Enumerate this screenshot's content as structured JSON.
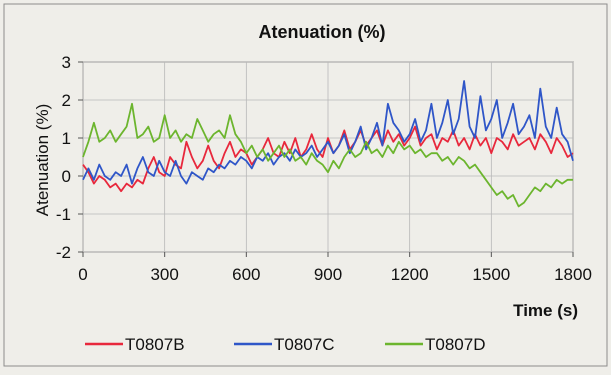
{
  "chart_data": {
    "type": "line",
    "title": "Atenuation (%)",
    "xlabel": "Time (s)",
    "ylabel": "Atenuation (%)",
    "xlim": [
      0,
      1800
    ],
    "ylim": [
      -2,
      3
    ],
    "xticks": [
      0,
      300,
      600,
      900,
      1200,
      1500,
      1800
    ],
    "yticks": [
      -2,
      -1,
      0,
      1,
      2,
      3
    ],
    "grid": true,
    "legend_position": "bottom",
    "series": [
      {
        "name": "T0807B",
        "color": "#e8283c",
        "x": [
          0,
          20,
          40,
          60,
          80,
          100,
          120,
          140,
          160,
          180,
          200,
          220,
          240,
          260,
          280,
          300,
          320,
          340,
          360,
          380,
          400,
          420,
          440,
          460,
          480,
          500,
          520,
          540,
          560,
          580,
          600,
          620,
          640,
          660,
          680,
          700,
          720,
          740,
          760,
          780,
          800,
          820,
          840,
          860,
          880,
          900,
          920,
          940,
          960,
          980,
          1000,
          1020,
          1040,
          1060,
          1080,
          1100,
          1120,
          1140,
          1160,
          1180,
          1200,
          1220,
          1240,
          1260,
          1280,
          1300,
          1320,
          1340,
          1360,
          1380,
          1400,
          1420,
          1440,
          1460,
          1480,
          1500,
          1520,
          1540,
          1560,
          1580,
          1600,
          1620,
          1640,
          1660,
          1680,
          1700,
          1720,
          1740,
          1760,
          1780,
          1800
        ],
        "values": [
          0.3,
          0.1,
          -0.2,
          0.0,
          -0.1,
          -0.3,
          -0.2,
          -0.4,
          -0.2,
          -0.3,
          -0.1,
          -0.2,
          0.2,
          0.5,
          0.1,
          0.0,
          0.5,
          0.3,
          0.2,
          0.9,
          0.5,
          0.2,
          0.4,
          0.8,
          0.4,
          0.2,
          0.6,
          0.9,
          0.5,
          0.7,
          0.6,
          0.3,
          0.5,
          0.7,
          1.0,
          0.6,
          0.5,
          0.9,
          0.6,
          1.0,
          0.5,
          0.7,
          1.1,
          0.7,
          0.5,
          1.0,
          0.6,
          0.8,
          1.2,
          0.7,
          0.9,
          1.2,
          0.8,
          1.0,
          1.2,
          0.8,
          1.2,
          0.9,
          1.1,
          0.8,
          1.0,
          1.3,
          0.8,
          1.0,
          1.1,
          0.7,
          1.0,
          0.9,
          1.2,
          0.8,
          1.0,
          0.7,
          1.1,
          0.8,
          1.0,
          0.6,
          1.0,
          0.9,
          0.7,
          1.1,
          0.8,
          0.9,
          1.0,
          0.7,
          1.1,
          0.9,
          0.6,
          1.0,
          0.8,
          0.5,
          0.6
        ]
      },
      {
        "name": "T0807C",
        "color": "#2f56c8",
        "x": [
          0,
          20,
          40,
          60,
          80,
          100,
          120,
          140,
          160,
          180,
          200,
          220,
          240,
          260,
          280,
          300,
          320,
          340,
          360,
          380,
          400,
          420,
          440,
          460,
          480,
          500,
          520,
          540,
          560,
          580,
          600,
          620,
          640,
          660,
          680,
          700,
          720,
          740,
          760,
          780,
          800,
          820,
          840,
          860,
          880,
          900,
          920,
          940,
          960,
          980,
          1000,
          1020,
          1040,
          1060,
          1080,
          1100,
          1120,
          1140,
          1160,
          1180,
          1200,
          1220,
          1240,
          1260,
          1280,
          1300,
          1320,
          1340,
          1360,
          1380,
          1400,
          1420,
          1440,
          1460,
          1480,
          1500,
          1520,
          1540,
          1560,
          1580,
          1600,
          1620,
          1640,
          1660,
          1680,
          1700,
          1720,
          1740,
          1760,
          1780,
          1800
        ],
        "values": [
          -0.1,
          0.2,
          -0.1,
          0.3,
          0.0,
          -0.1,
          0.1,
          0.0,
          0.3,
          -0.2,
          0.2,
          0.5,
          0.1,
          0.0,
          0.4,
          0.1,
          0.0,
          0.4,
          0.0,
          -0.2,
          0.1,
          0.0,
          -0.1,
          0.2,
          0.1,
          0.3,
          0.2,
          0.4,
          0.3,
          0.5,
          0.4,
          0.2,
          0.5,
          0.4,
          0.6,
          0.3,
          0.5,
          0.6,
          0.4,
          0.7,
          0.5,
          0.6,
          0.8,
          0.5,
          0.7,
          0.9,
          0.6,
          0.8,
          1.1,
          0.6,
          0.9,
          1.3,
          0.7,
          1.0,
          1.4,
          0.8,
          1.9,
          1.4,
          1.2,
          0.9,
          1.1,
          1.5,
          0.9,
          1.2,
          1.9,
          1.0,
          1.4,
          2.0,
          1.1,
          1.5,
          2.5,
          1.3,
          1.0,
          2.1,
          1.2,
          1.5,
          2.0,
          1.0,
          1.4,
          1.9,
          1.1,
          1.3,
          1.6,
          1.0,
          2.3,
          1.3,
          1.0,
          1.8,
          1.1,
          0.9,
          0.4
        ]
      },
      {
        "name": "T0807D",
        "color": "#6cb52e",
        "x": [
          0,
          20,
          40,
          60,
          80,
          100,
          120,
          140,
          160,
          180,
          200,
          220,
          240,
          260,
          280,
          300,
          320,
          340,
          360,
          380,
          400,
          420,
          440,
          460,
          480,
          500,
          520,
          540,
          560,
          580,
          600,
          620,
          640,
          660,
          680,
          700,
          720,
          740,
          760,
          780,
          800,
          820,
          840,
          860,
          880,
          900,
          920,
          940,
          960,
          980,
          1000,
          1020,
          1040,
          1060,
          1080,
          1100,
          1120,
          1140,
          1160,
          1180,
          1200,
          1220,
          1240,
          1260,
          1280,
          1300,
          1320,
          1340,
          1360,
          1380,
          1400,
          1420,
          1440,
          1460,
          1480,
          1500,
          1520,
          1540,
          1560,
          1580,
          1600,
          1620,
          1640,
          1660,
          1680,
          1700,
          1720,
          1740,
          1760,
          1780,
          1800
        ],
        "values": [
          0.5,
          0.9,
          1.4,
          0.9,
          1.0,
          1.2,
          0.9,
          1.1,
          1.3,
          1.9,
          1.0,
          1.1,
          1.3,
          0.9,
          1.0,
          1.6,
          1.0,
          1.2,
          0.9,
          1.1,
          1.0,
          1.5,
          1.2,
          0.9,
          1.1,
          1.2,
          1.0,
          1.6,
          1.1,
          0.9,
          0.6,
          0.8,
          0.5,
          0.7,
          0.4,
          0.6,
          0.8,
          0.5,
          0.7,
          0.4,
          0.5,
          0.3,
          0.6,
          0.4,
          0.3,
          0.1,
          0.4,
          0.2,
          0.5,
          0.7,
          0.5,
          0.6,
          0.9,
          0.6,
          0.7,
          0.5,
          0.8,
          0.6,
          0.9,
          0.7,
          0.8,
          0.6,
          0.7,
          0.5,
          0.6,
          0.6,
          0.4,
          0.5,
          0.3,
          0.5,
          0.4,
          0.2,
          0.3,
          0.1,
          -0.1,
          -0.3,
          -0.5,
          -0.4,
          -0.6,
          -0.5,
          -0.8,
          -0.7,
          -0.5,
          -0.3,
          -0.4,
          -0.2,
          -0.3,
          -0.1,
          -0.2,
          -0.1,
          -0.1
        ]
      }
    ]
  }
}
